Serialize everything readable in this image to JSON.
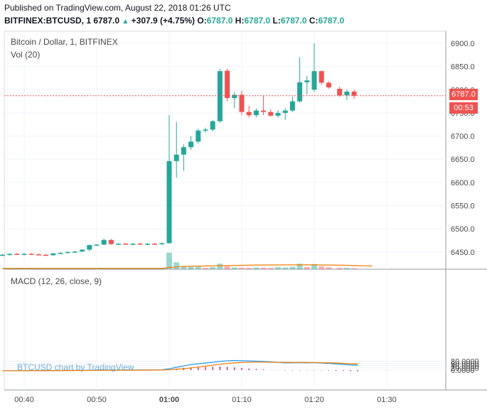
{
  "header": {
    "published": "Published on TradingView.com, August 22, 2018 01:26 UTC",
    "symbol": "BITFINEX:BTCUSD, 1",
    "last": "6787.0",
    "change": "+307.9 (+4.75%)",
    "o_label": "O:",
    "o_val": "6787.0",
    "h_label": "H:",
    "h_val": "6787.0",
    "l_label": "L:",
    "l_val": "6787.0",
    "c_label": "C:",
    "c_val": "6787.0"
  },
  "legend": {
    "title": "Bitcoin / Dollar, 1, BITFINEX",
    "volume": "Vol (20)",
    "macd": "MACD (12, 26, close, 9)"
  },
  "watermark": "BTCUSD chart by TradingView",
  "price_tag": {
    "value": "6787.0",
    "countdown": "00:53"
  },
  "colors": {
    "up": "#26a69a",
    "down": "#ef5350",
    "macd": "#2196f3",
    "signal": "#f57c00",
    "hist": "#c2185b"
  },
  "chart_data": [
    {
      "type": "candlestick",
      "title": "Bitcoin / Dollar, 1, BITFINEX",
      "x_tick_labels": [
        "00:40",
        "00:50",
        "01:00",
        "01:10",
        "01:20",
        "01:30"
      ],
      "x_ticks_minutes": [
        40,
        50,
        60,
        70,
        80,
        90
      ],
      "y_tick_labels": [
        "6450.0",
        "6500.0",
        "6550.0",
        "6600.0",
        "6650.0",
        "6700.0",
        "6750.0",
        "6800.0",
        "6850.0",
        "6900.0"
      ],
      "ylim": [
        6410,
        6915
      ],
      "last_price": 6787.0,
      "candles": [
        {
          "t": 37.0,
          "o": 6443,
          "h": 6446,
          "l": 6441,
          "c": 6444
        },
        {
          "t": 38.0,
          "o": 6444,
          "h": 6447,
          "l": 6442,
          "c": 6446
        },
        {
          "t": 39.0,
          "o": 6446,
          "h": 6448,
          "l": 6444,
          "c": 6445
        },
        {
          "t": 40.0,
          "o": 6445,
          "h": 6448,
          "l": 6443,
          "c": 6446
        },
        {
          "t": 41.0,
          "o": 6446,
          "h": 6448,
          "l": 6444,
          "c": 6445
        },
        {
          "t": 42.0,
          "o": 6445,
          "h": 6447,
          "l": 6443,
          "c": 6444
        },
        {
          "t": 43.0,
          "o": 6444,
          "h": 6446,
          "l": 6442,
          "c": 6443
        },
        {
          "t": 44.0,
          "o": 6443,
          "h": 6448,
          "l": 6442,
          "c": 6447
        },
        {
          "t": 45.0,
          "o": 6447,
          "h": 6450,
          "l": 6446,
          "c": 6448
        },
        {
          "t": 46.0,
          "o": 6448,
          "h": 6451,
          "l": 6447,
          "c": 6450
        },
        {
          "t": 47.0,
          "o": 6450,
          "h": 6452,
          "l": 6448,
          "c": 6451
        },
        {
          "t": 48.0,
          "o": 6451,
          "h": 6456,
          "l": 6450,
          "c": 6455
        },
        {
          "t": 49.0,
          "o": 6455,
          "h": 6466,
          "l": 6452,
          "c": 6465
        },
        {
          "t": 50.0,
          "o": 6465,
          "h": 6467,
          "l": 6463,
          "c": 6466
        },
        {
          "t": 51.0,
          "o": 6466,
          "h": 6479,
          "l": 6465,
          "c": 6476
        },
        {
          "t": 52.0,
          "o": 6476,
          "h": 6478,
          "l": 6466,
          "c": 6467
        },
        {
          "t": 53.0,
          "o": 6467,
          "h": 6469,
          "l": 6465,
          "c": 6468
        },
        {
          "t": 54.0,
          "o": 6468,
          "h": 6470,
          "l": 6466,
          "c": 6467
        },
        {
          "t": 55.0,
          "o": 6467,
          "h": 6469,
          "l": 6465,
          "c": 6468
        },
        {
          "t": 56.0,
          "o": 6468,
          "h": 6470,
          "l": 6466,
          "c": 6467
        },
        {
          "t": 57.0,
          "o": 6467,
          "h": 6469,
          "l": 6465,
          "c": 6468
        },
        {
          "t": 58.0,
          "o": 6468,
          "h": 6470,
          "l": 6466,
          "c": 6467
        },
        {
          "t": 59.0,
          "o": 6467,
          "h": 6470,
          "l": 6465,
          "c": 6469
        },
        {
          "t": 60.0,
          "o": 6469,
          "h": 6745,
          "l": 6468,
          "c": 6646
        },
        {
          "t": 61.0,
          "o": 6646,
          "h": 6730,
          "l": 6610,
          "c": 6660
        },
        {
          "t": 62.0,
          "o": 6660,
          "h": 6682,
          "l": 6625,
          "c": 6676
        },
        {
          "t": 63.0,
          "o": 6676,
          "h": 6700,
          "l": 6670,
          "c": 6688
        },
        {
          "t": 64.0,
          "o": 6688,
          "h": 6716,
          "l": 6684,
          "c": 6712
        },
        {
          "t": 65.0,
          "o": 6712,
          "h": 6718,
          "l": 6707,
          "c": 6714
        },
        {
          "t": 66.0,
          "o": 6714,
          "h": 6735,
          "l": 6710,
          "c": 6732
        },
        {
          "t": 67.0,
          "o": 6732,
          "h": 6845,
          "l": 6728,
          "c": 6840
        },
        {
          "t": 68.0,
          "o": 6841,
          "h": 6845,
          "l": 6775,
          "c": 6782
        },
        {
          "t": 69.0,
          "o": 6782,
          "h": 6795,
          "l": 6760,
          "c": 6789
        },
        {
          "t": 70.0,
          "o": 6789,
          "h": 6798,
          "l": 6745,
          "c": 6752
        },
        {
          "t": 71.0,
          "o": 6752,
          "h": 6765,
          "l": 6740,
          "c": 6745
        },
        {
          "t": 72.0,
          "o": 6745,
          "h": 6760,
          "l": 6740,
          "c": 6755
        },
        {
          "t": 73.0,
          "o": 6755,
          "h": 6788,
          "l": 6745,
          "c": 6752
        },
        {
          "t": 74.0,
          "o": 6752,
          "h": 6758,
          "l": 6742,
          "c": 6744
        },
        {
          "t": 75.0,
          "o": 6744,
          "h": 6756,
          "l": 6740,
          "c": 6750
        },
        {
          "t": 76.0,
          "o": 6750,
          "h": 6760,
          "l": 6735,
          "c": 6755
        },
        {
          "t": 77.0,
          "o": 6755,
          "h": 6785,
          "l": 6752,
          "c": 6775
        },
        {
          "t": 78.0,
          "o": 6775,
          "h": 6870,
          "l": 6772,
          "c": 6816
        },
        {
          "t": 79.0,
          "o": 6816,
          "h": 6830,
          "l": 6790,
          "c": 6820
        },
        {
          "t": 80.0,
          "o": 6800,
          "h": 6900,
          "l": 6795,
          "c": 6840
        },
        {
          "t": 81.0,
          "o": 6840,
          "h": 6842,
          "l": 6810,
          "c": 6815
        },
        {
          "t": 82.0,
          "o": 6815,
          "h": 6818,
          "l": 6802,
          "c": 6805
        },
        {
          "t": 83.5,
          "o": 6802,
          "h": 6806,
          "l": 6785,
          "c": 6788
        },
        {
          "t": 84.5,
          "o": 6788,
          "h": 6800,
          "l": 6778,
          "c": 6796
        },
        {
          "t": 85.5,
          "o": 6796,
          "h": 6800,
          "l": 6780,
          "c": 6787
        }
      ],
      "volume_area": {
        "max_value": 1.0,
        "bars": [
          {
            "t": 60.0,
            "v": 0.86,
            "up": true
          },
          {
            "t": 61.0,
            "v": 0.36,
            "up": true
          },
          {
            "t": 62.0,
            "v": 0.15,
            "up": true
          },
          {
            "t": 63.0,
            "v": 0.12,
            "up": true
          },
          {
            "t": 64.0,
            "v": 0.13,
            "up": true
          },
          {
            "t": 65.0,
            "v": 0.07,
            "up": false
          },
          {
            "t": 66.0,
            "v": 0.11,
            "up": true
          },
          {
            "t": 67.0,
            "v": 0.29,
            "up": true
          },
          {
            "t": 68.0,
            "v": 0.15,
            "up": false
          },
          {
            "t": 69.0,
            "v": 0.09,
            "up": true
          },
          {
            "t": 70.0,
            "v": 0.08,
            "up": false
          },
          {
            "t": 71.0,
            "v": 0.07,
            "up": false
          },
          {
            "t": 72.0,
            "v": 0.09,
            "up": true
          },
          {
            "t": 73.0,
            "v": 0.08,
            "up": false
          },
          {
            "t": 74.0,
            "v": 0.07,
            "up": false
          },
          {
            "t": 75.0,
            "v": 0.11,
            "up": true
          },
          {
            "t": 76.0,
            "v": 0.09,
            "up": true
          },
          {
            "t": 77.0,
            "v": 0.13,
            "up": true
          },
          {
            "t": 78.0,
            "v": 0.29,
            "up": true
          },
          {
            "t": 79.0,
            "v": 0.12,
            "up": false
          },
          {
            "t": 80.0,
            "v": 0.27,
            "up": true
          },
          {
            "t": 81.0,
            "v": 0.15,
            "up": false
          },
          {
            "t": 82.0,
            "v": 0.1,
            "up": false
          },
          {
            "t": 83.5,
            "v": 0.07,
            "up": false
          },
          {
            "t": 84.5,
            "v": 0.07,
            "up": true
          },
          {
            "t": 85.5,
            "v": 0.05,
            "up": false
          }
        ],
        "ma": [
          [
            37,
            0.0
          ],
          [
            59,
            0.0
          ],
          [
            60,
            0.05
          ],
          [
            62,
            0.11
          ],
          [
            66,
            0.14
          ],
          [
            72,
            0.18
          ],
          [
            76,
            0.19
          ],
          [
            80,
            0.19
          ],
          [
            84,
            0.17
          ],
          [
            88,
            0.13
          ]
        ]
      }
    },
    {
      "type": "line",
      "title": "MACD (12, 26, close, 9)",
      "y_tick_labels": [
        "0.0000",
        "20.0000",
        "40.0000",
        "60.0000",
        "80.0000"
      ],
      "ylim": [
        -14,
        90
      ],
      "series": [
        {
          "name": "MACD",
          "points": [
            [
              37,
              -6
            ],
            [
              44,
              -4
            ],
            [
              50,
              -1
            ],
            [
              55,
              1
            ],
            [
              59,
              3
            ],
            [
              60,
              12
            ],
            [
              61,
              26
            ],
            [
              62,
              38
            ],
            [
              63,
              50
            ],
            [
              64,
              58
            ],
            [
              65,
              65
            ],
            [
              66,
              72
            ],
            [
              67,
              80
            ],
            [
              68,
              85
            ],
            [
              69,
              88
            ],
            [
              70,
              86
            ],
            [
              71,
              84
            ],
            [
              72,
              82
            ],
            [
              73,
              79
            ],
            [
              74,
              76
            ],
            [
              75,
              71
            ],
            [
              76,
              67
            ],
            [
              77,
              67
            ],
            [
              78,
              68
            ],
            [
              79,
              67
            ],
            [
              80,
              68
            ],
            [
              81,
              65
            ],
            [
              82,
              61
            ],
            [
              83,
              57
            ],
            [
              84,
              52
            ],
            [
              85,
              48
            ],
            [
              86,
              45
            ]
          ]
        },
        {
          "name": "Signal",
          "points": [
            [
              37,
              -6
            ],
            [
              44,
              -5
            ],
            [
              50,
              -3
            ],
            [
              55,
              -1
            ],
            [
              59,
              1
            ],
            [
              60,
              3
            ],
            [
              61,
              8
            ],
            [
              62,
              13
            ],
            [
              63,
              20
            ],
            [
              64,
              28
            ],
            [
              65,
              36
            ],
            [
              66,
              45
            ],
            [
              67,
              54
            ],
            [
              68,
              61
            ],
            [
              69,
              66
            ],
            [
              70,
              70
            ],
            [
              71,
              72
            ],
            [
              72,
              73
            ],
            [
              73,
              73
            ],
            [
              74,
              72
            ],
            [
              75,
              71
            ],
            [
              76,
              71
            ],
            [
              77,
              70
            ],
            [
              78,
              70
            ],
            [
              79,
              70
            ],
            [
              80,
              69
            ],
            [
              81,
              68
            ],
            [
              82,
              67
            ],
            [
              83,
              65
            ],
            [
              84,
              62
            ],
            [
              85,
              59
            ],
            [
              86,
              56
            ]
          ]
        }
      ],
      "histogram": [
        {
          "t": 60,
          "v": 5
        },
        {
          "t": 61,
          "v": 13
        },
        {
          "t": 62,
          "v": 21
        },
        {
          "t": 63,
          "v": 25
        },
        {
          "t": 64,
          "v": 28
        },
        {
          "t": 65,
          "v": 29
        },
        {
          "t": 66,
          "v": 30
        },
        {
          "t": 67,
          "v": 33
        },
        {
          "t": 68,
          "v": 30
        },
        {
          "t": 69,
          "v": 25
        },
        {
          "t": 70,
          "v": 20
        },
        {
          "t": 71,
          "v": 15
        },
        {
          "t": 72,
          "v": 11
        },
        {
          "t": 73,
          "v": 7
        },
        {
          "t": 74,
          "v": 1
        },
        {
          "t": 75,
          "v": -1
        },
        {
          "t": 76,
          "v": -3
        },
        {
          "t": 77,
          "v": -3
        },
        {
          "t": 78,
          "v": -3
        },
        {
          "t": 79,
          "v": -2
        },
        {
          "t": 80,
          "v": -2
        },
        {
          "t": 81,
          "v": -3
        },
        {
          "t": 82,
          "v": -4
        },
        {
          "t": 83,
          "v": -6
        },
        {
          "t": 84,
          "v": -7
        },
        {
          "t": 85,
          "v": -9
        },
        {
          "t": 86,
          "v": -11
        }
      ]
    }
  ]
}
